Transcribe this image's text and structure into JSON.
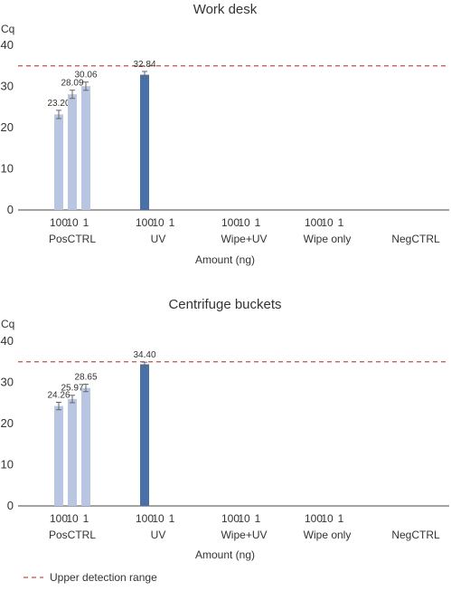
{
  "colors": {
    "light_bar": "#b8c6e1",
    "dark_bar": "#4a70a8",
    "axis": "#444444",
    "threshold": "#c0504d",
    "text": "#333333"
  },
  "legend": {
    "label": "Upper detection range"
  },
  "chart_data": [
    {
      "type": "bar",
      "title": "Work desk",
      "ylabel": "Cq",
      "xlabel": "Amount (ng)",
      "ylim": [
        0,
        40
      ],
      "yticks": [
        0,
        10,
        20,
        30,
        40
      ],
      "threshold": 35,
      "groups": [
        {
          "label": "PosCTRL",
          "categories": [
            "100",
            "10",
            "1"
          ],
          "values": [
            23.2,
            28.09,
            30.06
          ],
          "errors": [
            1.0,
            1.0,
            1.0
          ],
          "value_labels": [
            "23.20",
            "28.09",
            "30.06"
          ],
          "color": "light"
        },
        {
          "label": "UV",
          "categories": [
            "100",
            "10",
            "1"
          ],
          "values": [
            32.84,
            null,
            null
          ],
          "errors": [
            0.8,
            null,
            null
          ],
          "value_labels": [
            "32.84",
            null,
            null
          ],
          "color": "dark"
        },
        {
          "label": "Wipe+UV",
          "categories": [
            "100",
            "10",
            "1"
          ],
          "values": [
            null,
            null,
            null
          ],
          "errors": [
            null,
            null,
            null
          ],
          "value_labels": [
            null,
            null,
            null
          ],
          "color": "light"
        },
        {
          "label": "Wipe only",
          "categories": [
            "100",
            "10",
            "1"
          ],
          "values": [
            null,
            null,
            null
          ],
          "errors": [
            null,
            null,
            null
          ],
          "value_labels": [
            null,
            null,
            null
          ],
          "color": "light"
        },
        {
          "label": "NegCTRL",
          "categories": [],
          "values": [],
          "errors": [],
          "value_labels": [],
          "color": "light"
        }
      ]
    },
    {
      "type": "bar",
      "title": "Centrifuge buckets",
      "ylabel": "Cq",
      "xlabel": "Amount (ng)",
      "ylim": [
        0,
        40
      ],
      "yticks": [
        0,
        10,
        20,
        30,
        40
      ],
      "threshold": 35,
      "groups": [
        {
          "label": "PosCTRL",
          "categories": [
            "100",
            "10",
            "1"
          ],
          "values": [
            24.26,
            25.97,
            28.65
          ],
          "errors": [
            0.9,
            0.9,
            0.9
          ],
          "value_labels": [
            "24.26",
            "25.97",
            "28.65"
          ],
          "color": "light"
        },
        {
          "label": "UV",
          "categories": [
            "100",
            "10",
            "1"
          ],
          "values": [
            34.4,
            null,
            null
          ],
          "errors": [
            0.5,
            null,
            null
          ],
          "value_labels": [
            "34.40",
            null,
            null
          ],
          "color": "dark"
        },
        {
          "label": "Wipe+UV",
          "categories": [
            "100",
            "10",
            "1"
          ],
          "values": [
            null,
            null,
            null
          ],
          "errors": [
            null,
            null,
            null
          ],
          "value_labels": [
            null,
            null,
            null
          ],
          "color": "light"
        },
        {
          "label": "Wipe only",
          "categories": [
            "100",
            "10",
            "1"
          ],
          "values": [
            null,
            null,
            null
          ],
          "errors": [
            null,
            null,
            null
          ],
          "value_labels": [
            null,
            null,
            null
          ],
          "color": "light"
        },
        {
          "label": "NegCTRL",
          "categories": [],
          "values": [],
          "errors": [],
          "value_labels": [],
          "color": "light"
        }
      ]
    }
  ]
}
